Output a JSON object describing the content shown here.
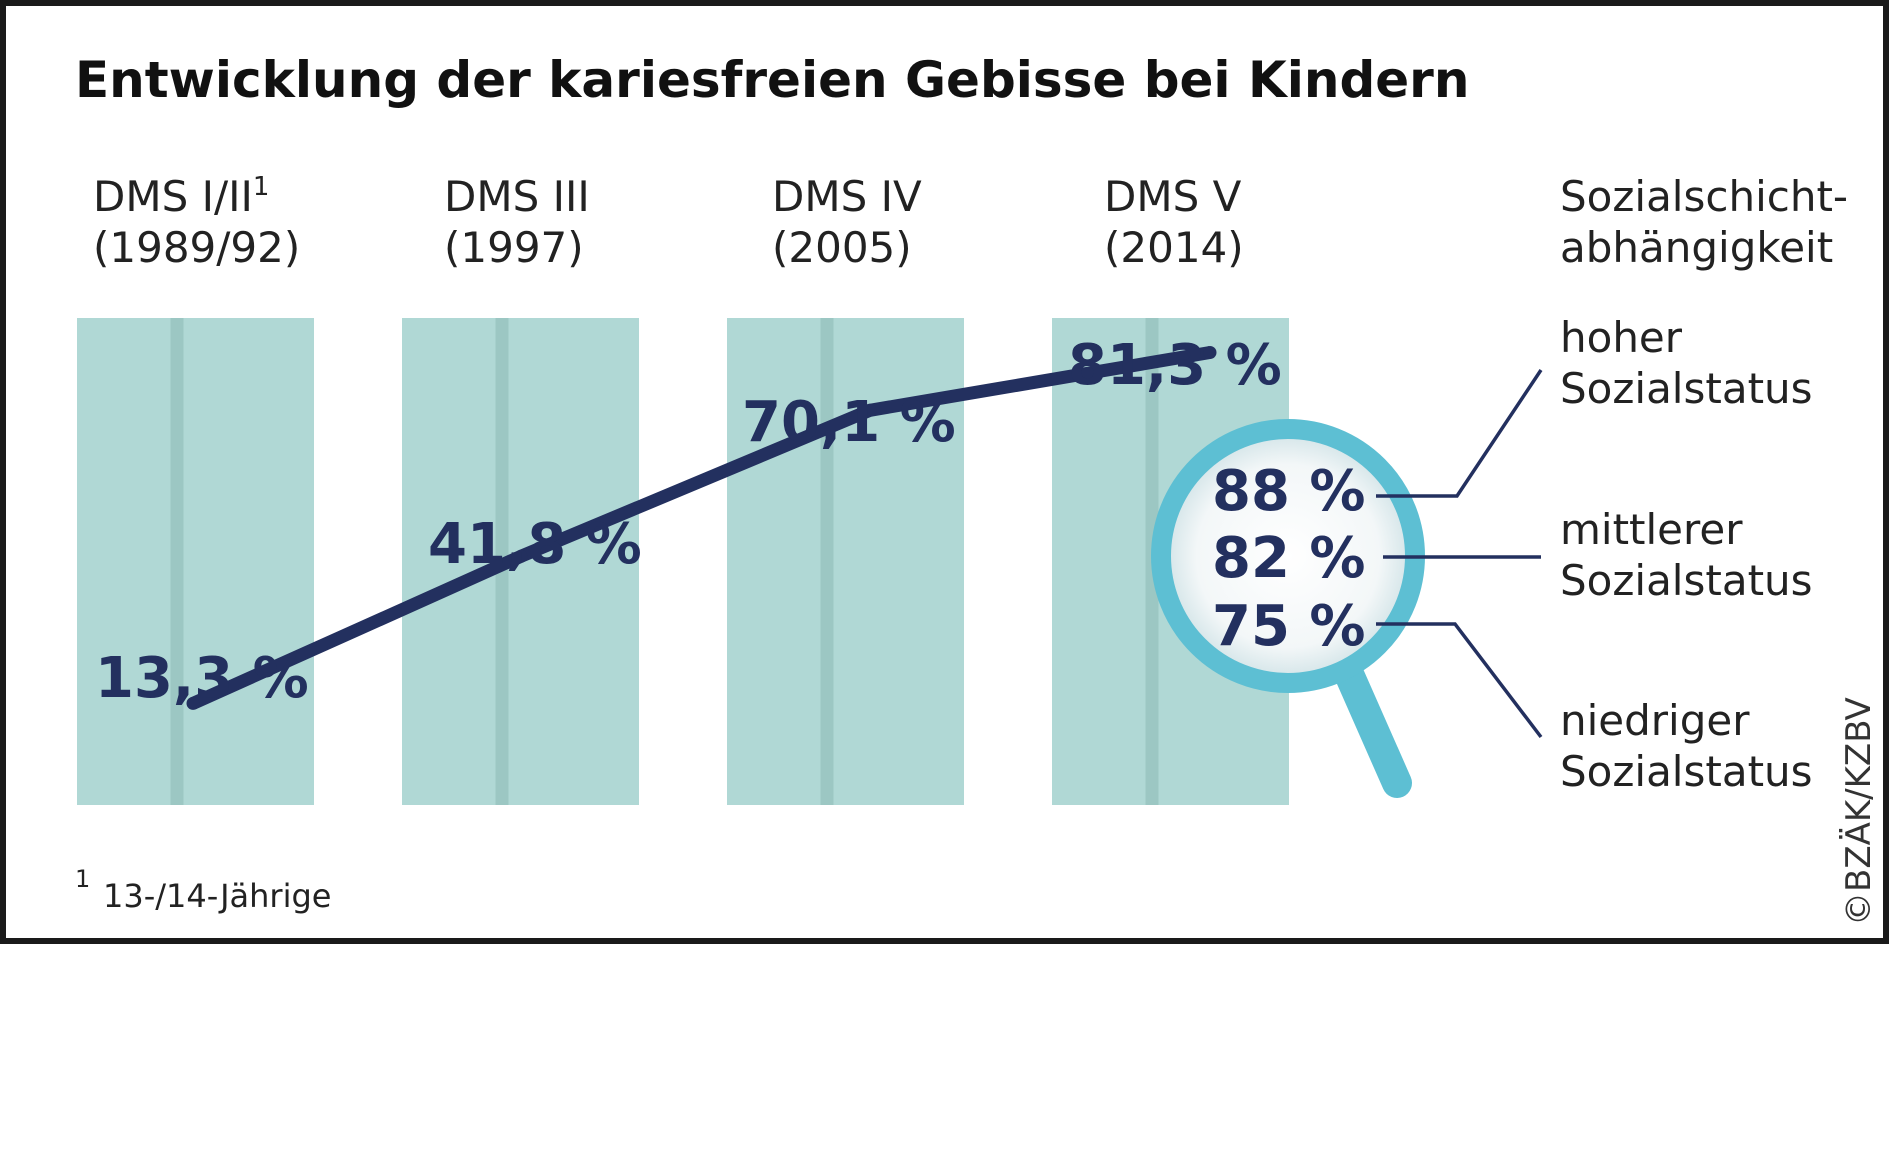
{
  "chart_data": {
    "type": "line",
    "title": "Entwicklung der kariesfreien Gebisse bei Kindern",
    "categories": [
      {
        "label": "DMS I/II",
        "superscript": "1",
        "year": "(1989/92)"
      },
      {
        "label": "DMS III",
        "superscript": "",
        "year": "(1997)"
      },
      {
        "label": "DMS IV",
        "superscript": "",
        "year": "(2005)"
      },
      {
        "label": "DMS V",
        "superscript": "",
        "year": "(2014)"
      }
    ],
    "values": [
      13.3,
      41.8,
      70.1,
      81.3
    ],
    "value_labels": [
      "13,3 %",
      "41,8 %",
      "70,1 %",
      "81,3 %"
    ],
    "ylim": [
      0,
      100
    ],
    "grid": false,
    "social_gradient": {
      "heading": [
        "Sozialschicht-",
        "abhängigkeit"
      ],
      "items": [
        {
          "value": 88,
          "label": "88 %",
          "status": [
            "hoher",
            "Sozialstatus"
          ]
        },
        {
          "value": 82,
          "label": "82 %",
          "status": [
            "mittlerer",
            "Sozialstatus"
          ]
        },
        {
          "value": 75,
          "label": "75 %",
          "status": [
            "niedriger",
            "Sozialstatus"
          ]
        }
      ]
    },
    "footnote": {
      "mark": "1",
      "text": "13-/14-Jährige"
    },
    "copyright": "©BZÄK/KZBV"
  },
  "colors": {
    "column": "#b0d8d5",
    "column_stripe": "#9cc7c3",
    "line": "#23305f",
    "magnifier": "#5dbfd3",
    "text_value": "#23305f",
    "border": "#1a1a1a"
  }
}
